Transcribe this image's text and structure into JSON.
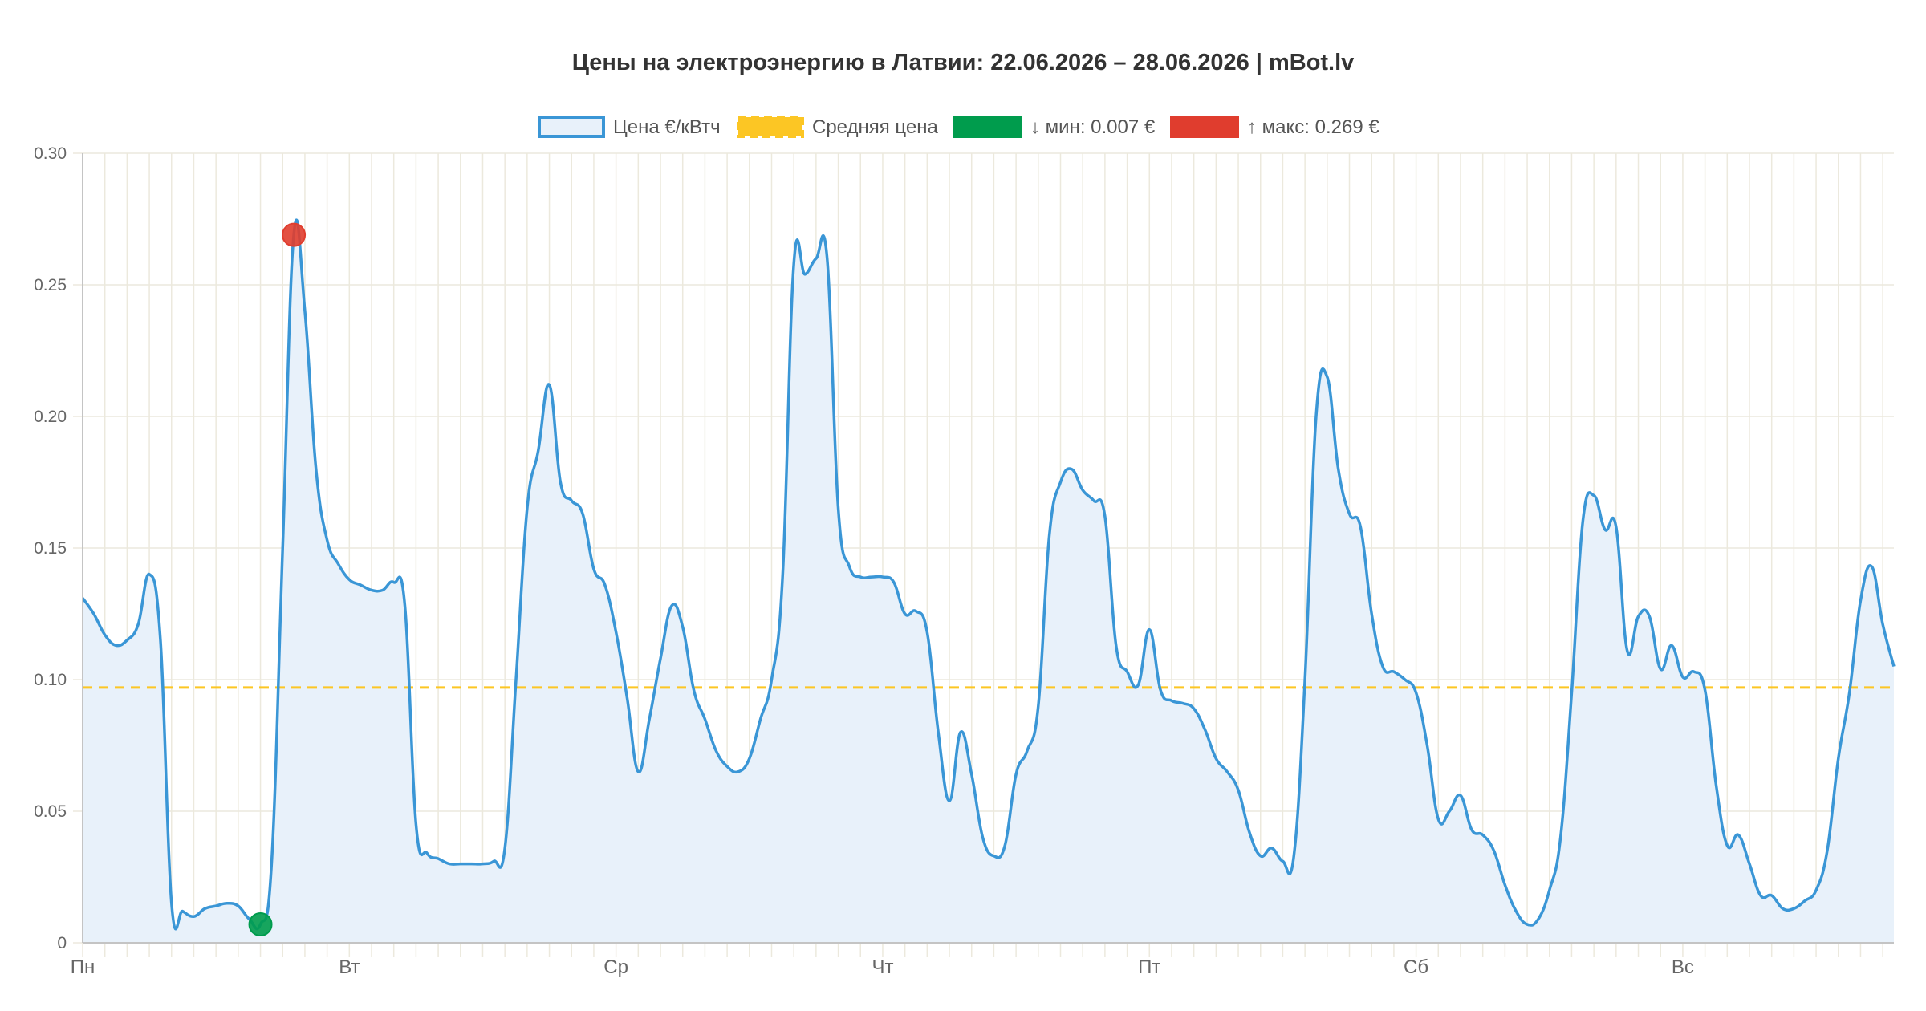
{
  "chart_data": {
    "type": "line",
    "title": "Цены на электроэнергию в Латвии: 22.06.2026 – 28.06.2026 | mBot.lv",
    "xlabel": "",
    "ylabel": "",
    "ylim": [
      0,
      0.3
    ],
    "y_ticks": [
      "0",
      "0.05",
      "0.10",
      "0.15",
      "0.20",
      "0.25",
      "0.30"
    ],
    "x_tick_labels": [
      "Пн",
      "Вт",
      "Ср",
      "Чт",
      "Пт",
      "Сб",
      "Вс"
    ],
    "hours_per_day": 24,
    "grid": true,
    "legend_position": "top",
    "legend": {
      "price": "Цена €/кВтч",
      "average": "Средняя цена",
      "min": "↓ мин: 0.007 €",
      "max": "↑ макс: 0.269 €"
    },
    "series": [
      {
        "name": "Цена €/кВтч",
        "color": "#3a96d6",
        "fill": "#e8f1fa",
        "values": [
          0.131,
          0.125,
          0.117,
          0.113,
          0.115,
          0.121,
          0.14,
          0.115,
          0.015,
          0.012,
          0.01,
          0.013,
          0.014,
          0.015,
          0.014,
          0.009,
          0.007,
          0.03,
          0.15,
          0.269,
          0.24,
          0.18,
          0.153,
          0.144,
          0.138,
          0.136,
          0.134,
          0.134,
          0.137,
          0.128,
          0.045,
          0.034,
          0.032,
          0.03,
          0.03,
          0.03,
          0.03,
          0.031,
          0.036,
          0.1,
          0.165,
          0.187,
          0.212,
          0.175,
          0.168,
          0.163,
          0.142,
          0.136,
          0.118,
          0.093,
          0.065,
          0.085,
          0.108,
          0.128,
          0.12,
          0.096,
          0.085,
          0.073,
          0.067,
          0.065,
          0.07,
          0.085,
          0.1,
          0.14,
          0.258,
          0.254,
          0.26,
          0.26,
          0.165,
          0.143,
          0.139,
          0.139,
          0.139,
          0.137,
          0.125,
          0.126,
          0.118,
          0.08,
          0.054,
          0.08,
          0.064,
          0.04,
          0.033,
          0.037,
          0.064,
          0.073,
          0.09,
          0.155,
          0.175,
          0.18,
          0.172,
          0.168,
          0.162,
          0.113,
          0.103,
          0.098,
          0.119,
          0.096,
          0.092,
          0.091,
          0.089,
          0.081,
          0.07,
          0.065,
          0.058,
          0.042,
          0.033,
          0.036,
          0.031,
          0.033,
          0.1,
          0.2,
          0.215,
          0.18,
          0.163,
          0.158,
          0.125,
          0.105,
          0.103,
          0.1,
          0.095,
          0.075,
          0.047,
          0.05,
          0.056,
          0.043,
          0.041,
          0.035,
          0.022,
          0.012,
          0.007,
          0.009,
          0.02,
          0.04,
          0.095,
          0.16,
          0.17,
          0.157,
          0.158,
          0.111,
          0.124,
          0.124,
          0.104,
          0.113,
          0.101,
          0.103,
          0.096,
          0.06,
          0.037,
          0.041,
          0.03,
          0.018,
          0.018,
          0.013,
          0.013,
          0.016,
          0.02,
          0.035,
          0.07,
          0.095,
          0.13,
          0.143,
          0.121,
          0.105
        ]
      }
    ],
    "average": {
      "name": "Средняя цена",
      "value": 0.097,
      "color": "#fcc624"
    },
    "min_point": {
      "index": 16,
      "value": 0.007,
      "color": "#009c4d"
    },
    "max_point": {
      "index": 19,
      "value": 0.269,
      "color": "#e03d2e"
    },
    "grid_color": "#ece9dd",
    "axis_color": "#c4c4c4",
    "text_color": "#666666",
    "title_color": "#333333"
  }
}
